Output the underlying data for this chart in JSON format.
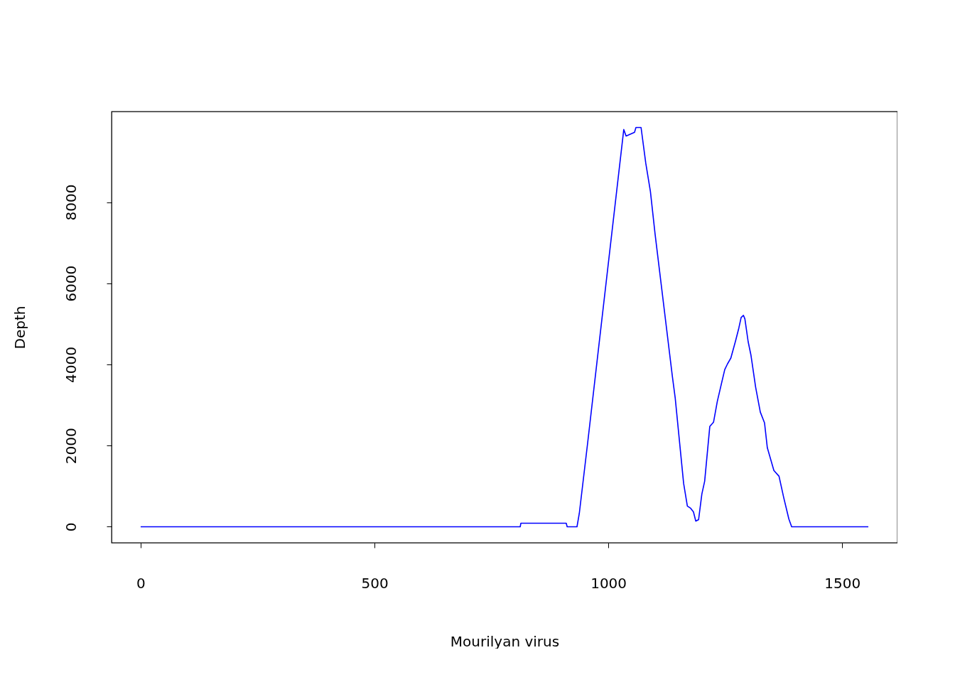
{
  "chart_data": {
    "type": "line",
    "xlabel": "Mourilyan virus",
    "ylabel": "Depth",
    "x": [
      0,
      811.6,
      813,
      910,
      912,
      933,
      938,
      956,
      1033,
      1038,
      1056,
      1059,
      1070,
      1080,
      1090,
      1100,
      1137,
      1143,
      1161,
      1169,
      1176,
      1182,
      1187,
      1193,
      1200,
      1206,
      1217,
      1225,
      1233,
      1239,
      1249,
      1255,
      1262,
      1272,
      1279,
      1284,
      1289,
      1292,
      1299,
      1305,
      1315,
      1325,
      1334,
      1340,
      1354,
      1365,
      1375,
      1386,
      1392,
      1556
    ],
    "series": [
      {
        "color": "#0000ff",
        "values": [
          0,
          0,
          88,
          88,
          0,
          0,
          333,
          2088,
          9790,
          9630,
          9720,
          9840,
          9840,
          8965,
          8263,
          7210,
          3700,
          3175,
          1070,
          509,
          456,
          368,
          140,
          175,
          807,
          1123,
          2474,
          2579,
          3088,
          3386,
          3877,
          4018,
          4158,
          4579,
          4895,
          5158,
          5210,
          5123,
          4561,
          4228,
          3439,
          2825,
          2561,
          1947,
          1386,
          1245,
          719,
          193,
          0,
          0
        ]
      }
    ],
    "xlim": [
      -62.2,
      1618.2
    ],
    "ylim": [
      -394,
      10234
    ],
    "xticks": [
      0,
      500,
      1000,
      1500
    ],
    "yticks": [
      0,
      2000,
      4000,
      6000,
      8000
    ],
    "grid": false,
    "marker": "none",
    "line_style": "solid"
  }
}
